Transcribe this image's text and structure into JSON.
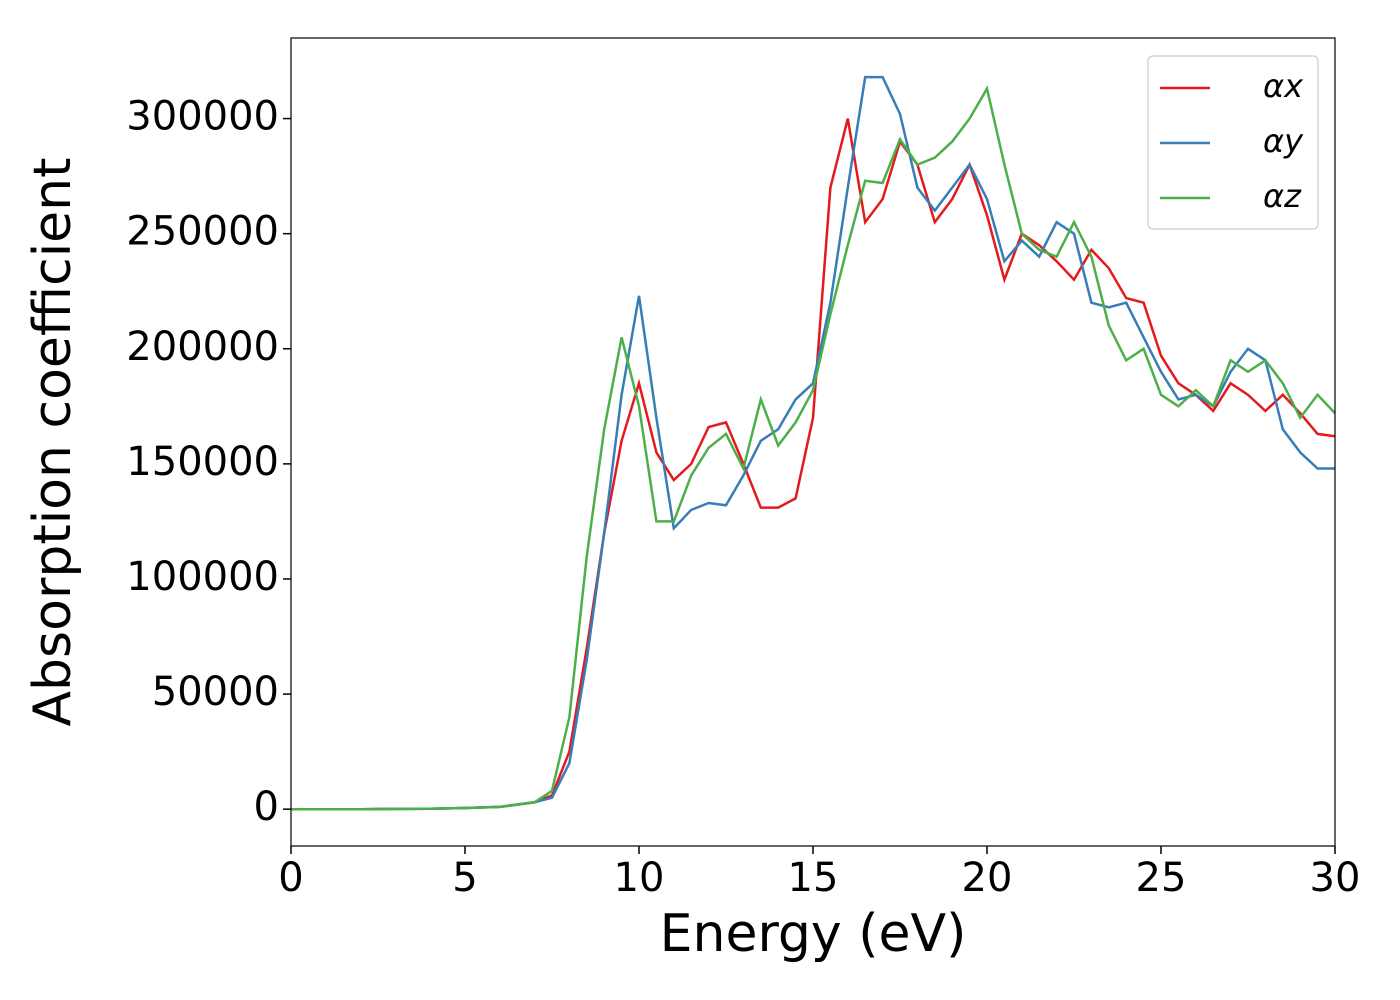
{
  "chart_data": {
    "type": "line",
    "x_label": "Energy (eV)",
    "y_label": "Absorption coefficient",
    "x": [
      0,
      2,
      4,
      5,
      6,
      7,
      7.5,
      8,
      8.5,
      9,
      9.5,
      10,
      10.5,
      11,
      11.5,
      12,
      12.5,
      13,
      13.5,
      14,
      14.5,
      15,
      15.5,
      16,
      16.5,
      17,
      17.5,
      18,
      18.5,
      19,
      19.5,
      20,
      20.5,
      21,
      21.5,
      22,
      22.5,
      23,
      23.5,
      24,
      24.5,
      25,
      25.5,
      26,
      26.5,
      27,
      27.5,
      28,
      28.5,
      29,
      29.5,
      30
    ],
    "series": [
      {
        "name": "αx",
        "color": "#e41a1c",
        "values": [
          0,
          0,
          200,
          500,
          1000,
          3000,
          6000,
          25000,
          70000,
          120000,
          160000,
          185000,
          155000,
          143000,
          150000,
          166000,
          168000,
          150000,
          131000,
          131000,
          135000,
          170000,
          270000,
          300000,
          255000,
          265000,
          290000,
          280000,
          255000,
          265000,
          280000,
          258000,
          230000,
          250000,
          245000,
          238000,
          230000,
          243000,
          235000,
          222000,
          220000,
          197000,
          185000,
          180000,
          173000,
          185000,
          180000,
          173000,
          180000,
          172000,
          163000,
          162000
        ]
      },
      {
        "name": "αy",
        "color": "#377eb8",
        "values": [
          0,
          0,
          200,
          500,
          1000,
          3000,
          5000,
          20000,
          65000,
          120000,
          180000,
          223000,
          170000,
          122000,
          130000,
          133000,
          132000,
          145000,
          160000,
          165000,
          178000,
          185000,
          220000,
          270000,
          318000,
          318000,
          302000,
          270000,
          260000,
          270000,
          280000,
          265000,
          238000,
          247000,
          240000,
          255000,
          250000,
          220000,
          218000,
          220000,
          205000,
          190000,
          178000,
          180000,
          175000,
          190000,
          200000,
          195000,
          165000,
          155000,
          148000,
          148000
        ]
      },
      {
        "name": "αz",
        "color": "#4daf4a",
        "values": [
          0,
          0,
          200,
          500,
          1000,
          3000,
          8000,
          40000,
          110000,
          165000,
          205000,
          175000,
          125000,
          125000,
          145000,
          157000,
          163000,
          148000,
          178000,
          158000,
          168000,
          182000,
          215000,
          245000,
          273000,
          272000,
          291000,
          280000,
          283000,
          290000,
          300000,
          313000,
          280000,
          250000,
          243000,
          240000,
          255000,
          240000,
          210000,
          195000,
          200000,
          180000,
          175000,
          182000,
          175000,
          195000,
          190000,
          195000,
          185000,
          170000,
          180000,
          172000
        ]
      }
    ],
    "xlim": [
      0,
      30
    ],
    "xticks": [
      0,
      5,
      10,
      15,
      20,
      25,
      30
    ],
    "ylim": [
      -16000,
      335000
    ],
    "yticks": [
      0,
      50000,
      100000,
      150000,
      200000,
      250000,
      300000
    ],
    "legend": "upper right",
    "grid": false
  }
}
